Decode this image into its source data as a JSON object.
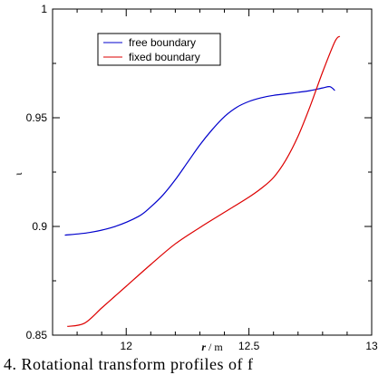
{
  "chart_data": {
    "type": "line",
    "xlabel_var": "r",
    "xlabel_unit": " / m",
    "ylabel": "ι",
    "xlim": [
      11.7,
      13.0
    ],
    "ylim": [
      0.85,
      1.0
    ],
    "xticks": [
      12,
      12.5,
      13
    ],
    "xtick_labels": [
      "12",
      "12.5",
      "13"
    ],
    "yticks": [
      0.85,
      0.9,
      0.95,
      1.0
    ],
    "ytick_labels": [
      "0.85",
      "0.9",
      "0.95",
      "1"
    ],
    "legend_position": "top-left",
    "series": [
      {
        "name": "free boundary",
        "color": "#0000cc",
        "x": [
          11.75,
          11.85,
          11.95,
          12.05,
          12.1,
          12.15,
          12.2,
          12.25,
          12.3,
          12.35,
          12.4,
          12.45,
          12.5,
          12.55,
          12.6,
          12.65,
          12.7,
          12.75,
          12.8,
          12.83,
          12.85
        ],
        "y": [
          0.896,
          0.8972,
          0.8998,
          0.9046,
          0.909,
          0.9145,
          0.9215,
          0.9295,
          0.9375,
          0.9445,
          0.9505,
          0.9548,
          0.9575,
          0.9592,
          0.9603,
          0.961,
          0.9617,
          0.9625,
          0.9637,
          0.9643,
          0.9625
        ]
      },
      {
        "name": "fixed boundary",
        "color": "#dd0000",
        "x": [
          11.76,
          11.83,
          11.9,
          11.95,
          12.0,
          12.1,
          12.2,
          12.3,
          12.4,
          12.5,
          12.55,
          12.6,
          12.65,
          12.7,
          12.75,
          12.8,
          12.85,
          12.87
        ],
        "y": [
          0.854,
          0.8555,
          0.8625,
          0.8675,
          0.8725,
          0.8825,
          0.892,
          0.8995,
          0.9065,
          0.9135,
          0.9175,
          0.9225,
          0.9305,
          0.9415,
          0.9555,
          0.971,
          0.985,
          0.9875
        ]
      }
    ]
  },
  "caption_text": "4. Rotational transform profiles of f"
}
